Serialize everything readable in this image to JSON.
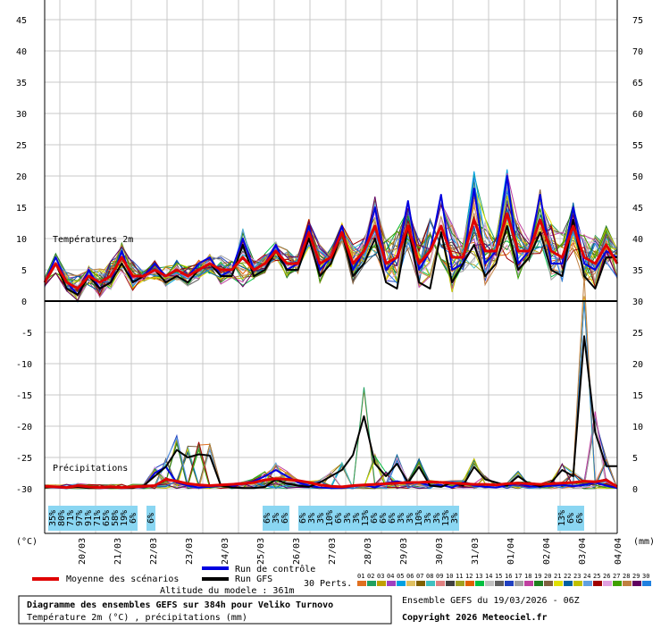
{
  "chart_data": {
    "type": "line",
    "upper_panel": {
      "label": "Températures 2m",
      "left_axis": {
        "ticks": [
          "45",
          "40",
          "35",
          "30",
          "25",
          "20",
          "15",
          "10",
          "5",
          "0"
        ],
        "ylim": [
          0,
          45
        ]
      },
      "right_axis": {
        "ticks": [
          "75",
          "70",
          "65",
          "60",
          "55",
          "50",
          "45",
          "40",
          "35",
          "30"
        ]
      }
    },
    "lower_panel": {
      "label": "Précipitations",
      "left_axis": {
        "ticks": [
          "-5",
          "-10",
          "-15",
          "-20",
          "-25",
          "-30"
        ]
      },
      "right_axis": {
        "ticks": [
          "25",
          "20",
          "15",
          "10",
          "5",
          "0"
        ],
        "ylim": [
          0,
          30
        ]
      }
    },
    "x_dates": [
      "20/03",
      "21/03",
      "22/03",
      "23/03",
      "24/03",
      "25/03",
      "26/03",
      "27/03",
      "28/03",
      "29/03",
      "30/03",
      "31/03",
      "01/04",
      "02/04",
      "03/04",
      "04/04"
    ],
    "y_unit_left": "(°C)",
    "y_unit_right": "(mm)",
    "snow_chance": [
      "35%",
      "80%",
      "71%",
      "97%",
      "91%",
      "71%",
      "65%",
      "58%",
      "19%",
      "6%",
      "6%",
      "6%",
      "3%",
      "6%",
      "6%",
      "3%",
      "3%",
      "10%",
      "6%",
      "3%",
      "3%",
      "13%",
      "6%",
      "6%",
      "6%",
      "3%",
      "3%",
      "10%",
      "3%",
      "3%",
      "13%",
      "3%",
      "13%",
      "6%",
      "6%"
    ],
    "series": [
      {
        "name": "Moyenne des scénarios",
        "color": "#e00000",
        "temperature": [
          3,
          6,
          3,
          2,
          4,
          3,
          4,
          7,
          4,
          4,
          5,
          4,
          5,
          4,
          5,
          6,
          5,
          5,
          7,
          5,
          6,
          8,
          6,
          6,
          11,
          6,
          7,
          11,
          6,
          8,
          12,
          6,
          7,
          12,
          6,
          8,
          12,
          7,
          7,
          13,
          8,
          8,
          14,
          8,
          8,
          13,
          8,
          7,
          12,
          7,
          6,
          9,
          6
        ],
        "precip": [
          0.4,
          0.3,
          0.2,
          0.5,
          0.3,
          0.2,
          0.3,
          0.2,
          0.3,
          0.4,
          0.5,
          1.5,
          1.2,
          0.8,
          0.6,
          0.5,
          0.6,
          0.7,
          0.8,
          1.0,
          1.4,
          1.6,
          1.5,
          1.3,
          1.0,
          0.6,
          0.4,
          0.3,
          0.5,
          0.6,
          0.7,
          0.8,
          0.9,
          1.0,
          1.0,
          1.1,
          1.0,
          0.9,
          0.8,
          0.7,
          0.7,
          0.6,
          0.8,
          0.9,
          0.8,
          0.7,
          0.8,
          0.9,
          1.0,
          1.2,
          1.1,
          1.4,
          0.3
        ]
      },
      {
        "name": "Run de contrôle",
        "color": "#0000e0",
        "temperature": [
          3,
          7,
          3,
          1,
          5,
          2,
          3,
          8,
          3,
          4,
          6,
          4,
          5,
          4,
          6,
          7,
          4,
          5,
          10,
          5,
          6,
          9,
          5,
          6,
          12,
          5,
          7,
          12,
          5,
          8,
          15,
          5,
          7,
          16,
          5,
          8,
          17,
          5,
          6,
          18,
          6,
          8,
          20,
          6,
          8,
          17,
          6,
          6,
          15,
          6,
          5,
          8,
          7
        ],
        "precip": [
          0.3,
          0.2,
          0.1,
          0.6,
          0.2,
          0.1,
          0.2,
          0.1,
          0.2,
          0.3,
          2.5,
          3.5,
          1.0,
          0.5,
          0.2,
          0.3,
          0.5,
          0.4,
          0.8,
          1.2,
          2.0,
          3.0,
          2.0,
          1.0,
          0.5,
          0.2,
          0.1,
          0.1,
          0.4,
          0.6,
          0.2,
          0.9,
          1.2,
          0.8,
          1.0,
          0.5,
          0.6,
          0.2,
          1.0,
          0.5,
          0.3,
          0.2,
          0.5,
          0.8,
          0.4,
          0.3,
          0.5,
          0.6,
          0.4,
          0.6,
          1.0,
          0.5,
          0.1
        ]
      },
      {
        "name": "Run GFS",
        "color": "#000000",
        "temperature": [
          3,
          6,
          2,
          1,
          4,
          2,
          3,
          6,
          3,
          4,
          5,
          3,
          4,
          3,
          5,
          6,
          4,
          4,
          9,
          4,
          5,
          8,
          5,
          5,
          10,
          4,
          6,
          11,
          4,
          6,
          10,
          3,
          2,
          12,
          3,
          2,
          11,
          3,
          6,
          9,
          4,
          6,
          12,
          5,
          7,
          11,
          5,
          4,
          13,
          4,
          2,
          7,
          7
        ],
        "precip": [
          0.2,
          0.3,
          0.2,
          0.3,
          0.1,
          0.1,
          0.2,
          0.1,
          0.1,
          0.5,
          2.0,
          3.5,
          6.2,
          5.0,
          5.5,
          5.3,
          0.5,
          0.2,
          0.1,
          0.1,
          0.3,
          1.5,
          0.8,
          0.5,
          0.3,
          1.0,
          2.0,
          3.0,
          5.4,
          11.6,
          4.0,
          2.0,
          4.0,
          1.0,
          3.5,
          0.5,
          0.3,
          1.0,
          0.5,
          3.5,
          1.5,
          1.0,
          0.5,
          2.0,
          0.8,
          0.4,
          1.0,
          3.0,
          2.0,
          24.4,
          9.0,
          3.6,
          3.6
        ]
      }
    ],
    "ensemble": {
      "label": "30 Perts.",
      "members": [
        "01",
        "02",
        "03",
        "04",
        "05",
        "06",
        "07",
        "08",
        "09",
        "10",
        "11",
        "12",
        "13",
        "14",
        "15",
        "16",
        "17",
        "18",
        "19",
        "20",
        "21",
        "22",
        "23",
        "24",
        "25",
        "26",
        "27",
        "28",
        "29",
        "30"
      ],
      "colors": [
        "#e07020",
        "#20a060",
        "#c0a000",
        "#a040c0",
        "#00a0e0",
        "#e0c060",
        "#806000",
        "#40c0c0",
        "#e08080",
        "#404040",
        "#a0a020",
        "#e06000",
        "#00c040",
        "#c0c0c0",
        "#606060",
        "#2040c0",
        "#a0a0a0",
        "#c040a0",
        "#208020",
        "#806040",
        "#e0e000",
        "#0060a0",
        "#c0c000",
        "#60a0e0",
        "#a00000",
        "#e0a0e0",
        "#40a000",
        "#c08040",
        "#600060",
        "#2080e0"
      ]
    },
    "legend": {
      "mean": "Moyenne des scénarios",
      "control": "Run de contrôle",
      "gfs": "Run GFS",
      "altitude": "Altitude du modele : 361m"
    },
    "title": "Diagramme des ensembles GEFS sur 384h pour Veliko Turnovo",
    "subtitle": "Température 2m (°C) , précipitations (mm)",
    "run_info": "Ensemble GEFS du 19/03/2026 - 06Z",
    "copyright": "Copyright 2026 Meteociel.fr"
  }
}
